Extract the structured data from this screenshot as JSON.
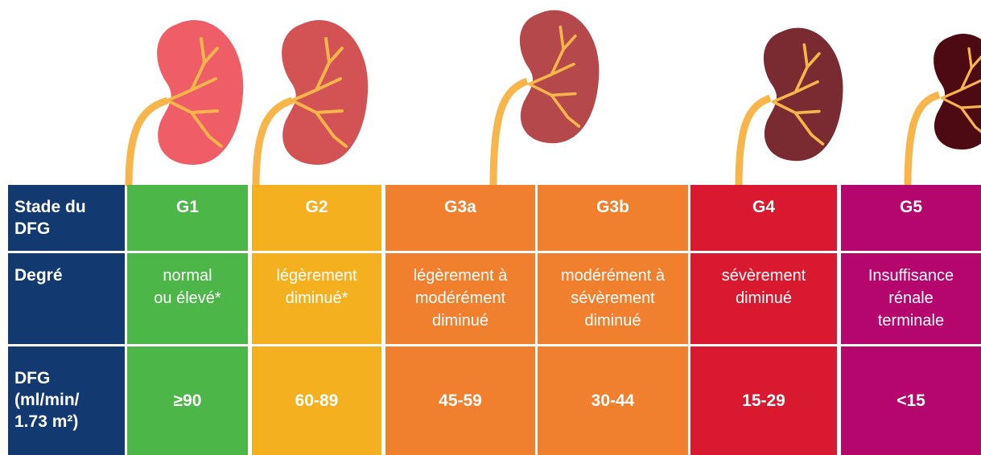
{
  "table": {
    "row_headers": [
      [
        "Stade du",
        "DFG"
      ],
      [
        "Degré"
      ],
      [
        "DFG",
        "(ml/min/",
        "1.73 m²)"
      ]
    ],
    "stages": [
      "G1",
      "G2",
      "G3a",
      "G3b",
      "G4",
      "G5"
    ],
    "degrees": [
      [
        "normal",
        "ou élevé*"
      ],
      [
        "légèrement",
        "diminué*"
      ],
      [
        "légèrement à",
        "modérément",
        "diminué"
      ],
      [
        "modérément à",
        "sévèrement",
        "diminué"
      ],
      [
        "sévèrement",
        "diminué"
      ],
      [
        "Insuffisance",
        "rénale",
        "terminale"
      ]
    ],
    "dfg": [
      "≥90",
      "60-89",
      "45-59",
      "30-44",
      "15-29",
      "<15"
    ]
  }
}
